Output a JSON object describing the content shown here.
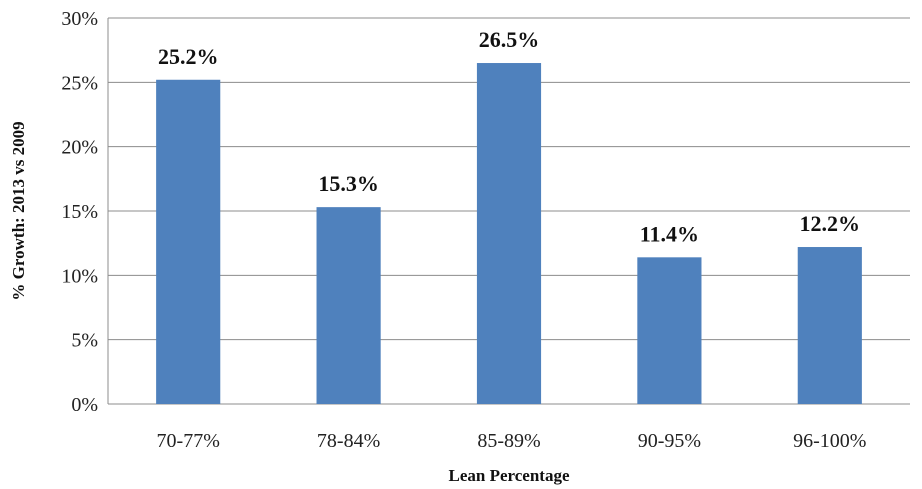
{
  "chart_data": {
    "type": "bar",
    "categories": [
      "70-77%",
      "78-84%",
      "85-89%",
      "90-95%",
      "96-100%"
    ],
    "values": [
      25.2,
      15.3,
      26.5,
      11.4,
      12.2
    ],
    "data_labels": [
      "25.2%",
      "15.3%",
      "26.5%",
      "11.4%",
      "12.2%"
    ],
    "xlabel": "Lean Percentage",
    "ylabel": "% Growth: 2013 vs 2009",
    "ylim": [
      0,
      30
    ],
    "yticks": [
      0,
      5,
      10,
      15,
      20,
      25,
      30
    ],
    "ytick_labels": [
      "0%",
      "5%",
      "10%",
      "15%",
      "20%",
      "25%",
      "30%"
    ],
    "grid": true,
    "legend": false,
    "colors": {
      "bar": "#4F81BD",
      "grid": "#8C8C8C"
    }
  }
}
